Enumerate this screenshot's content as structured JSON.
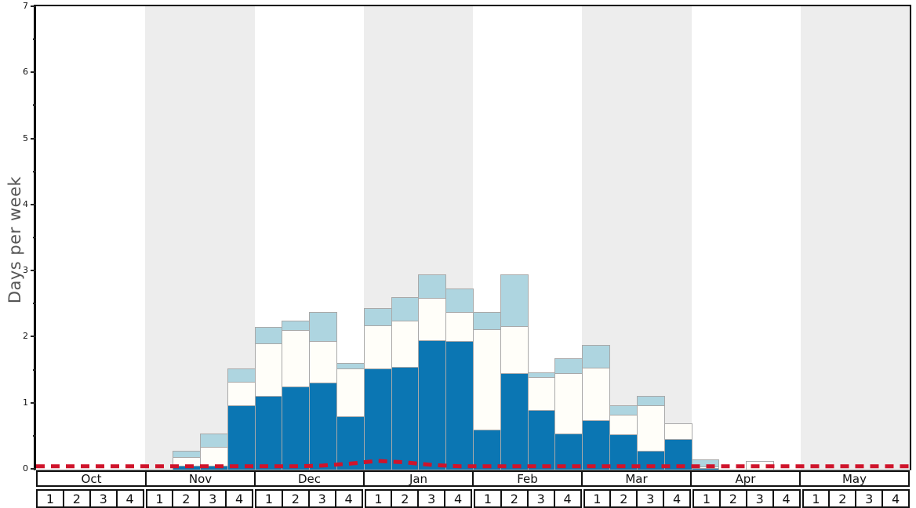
{
  "chart_data": {
    "type": "bar",
    "stacked": true,
    "title": "",
    "ylabel": "Days per week",
    "xlabel": "",
    "ylim": [
      0,
      7
    ],
    "ytick_labels": [
      "0",
      "1",
      "2",
      "3",
      "4",
      "5",
      "6",
      "7"
    ],
    "grid": false,
    "legend": "none",
    "months": [
      "Oct",
      "Nov",
      "Dec",
      "Jan",
      "Feb",
      "Mar",
      "Apr",
      "May"
    ],
    "week_labels": [
      "1",
      "2",
      "3",
      "4"
    ],
    "shaded_months": [
      "Nov",
      "Jan",
      "Mar",
      "May"
    ],
    "band_shade_color": "#ededed",
    "bar_border_color": "#a9a9a9",
    "categories": [
      "Oct-1",
      "Oct-2",
      "Oct-3",
      "Oct-4",
      "Nov-1",
      "Nov-2",
      "Nov-3",
      "Nov-4",
      "Dec-1",
      "Dec-2",
      "Dec-3",
      "Dec-4",
      "Jan-1",
      "Jan-2",
      "Jan-3",
      "Jan-4",
      "Feb-1",
      "Feb-2",
      "Feb-3",
      "Feb-4",
      "Mar-1",
      "Mar-2",
      "Mar-3",
      "Mar-4",
      "Apr-1",
      "Apr-2",
      "Apr-3",
      "Apr-4",
      "May-1",
      "May-2",
      "May-3",
      "May-4"
    ],
    "series": [
      {
        "name": "dark-blue-series",
        "color": "#0b76b3",
        "values": [
          0,
          0,
          0,
          0,
          0,
          0.06,
          0.06,
          0.97,
          1.11,
          1.26,
          1.32,
          0.81,
          1.53,
          1.55,
          1.96,
          1.95,
          0.61,
          1.46,
          0.9,
          0.55,
          0.75,
          0.54,
          0.28,
          0.46,
          0.02,
          0,
          0,
          0,
          0,
          0,
          0,
          0
        ]
      },
      {
        "name": "white-series",
        "color": "#fffef9",
        "values": [
          0,
          0,
          0,
          0,
          0,
          0.13,
          0.28,
          0.36,
          0.8,
          0.85,
          0.63,
          0.72,
          0.65,
          0.7,
          0.64,
          0.44,
          1.51,
          0.71,
          0.5,
          0.91,
          0.79,
          0.29,
          0.69,
          0.24,
          0.03,
          0,
          0.13,
          0,
          0,
          0,
          0,
          0
        ]
      },
      {
        "name": "light-blue-series",
        "color": "#aed5e0",
        "values": [
          0,
          0,
          0,
          0,
          0,
          0.09,
          0.21,
          0.2,
          0.25,
          0.14,
          0.44,
          0.08,
          0.27,
          0.36,
          0.35,
          0.35,
          0.26,
          0.78,
          0.07,
          0.22,
          0.35,
          0.14,
          0.15,
          0,
          0.1,
          0,
          0,
          0,
          0,
          0,
          0,
          0
        ]
      }
    ],
    "overlay_line": {
      "name": "red-dashed-line",
      "color": "#cf142b",
      "style": "dashed",
      "values": [
        0.05,
        0.05,
        0.05,
        0.05,
        0.05,
        0.05,
        0.05,
        0.05,
        0.05,
        0.05,
        0.06,
        0.09,
        0.13,
        0.11,
        0.07,
        0.05,
        0.05,
        0.05,
        0.05,
        0.05,
        0.05,
        0.05,
        0.05,
        0.05,
        0.05,
        0.05,
        0.05,
        0.05,
        0.05,
        0.05,
        0.05,
        0.05
      ]
    }
  }
}
